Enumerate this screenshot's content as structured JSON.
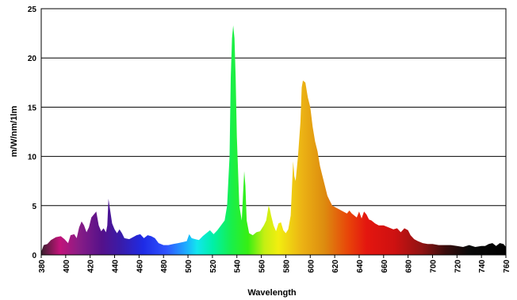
{
  "chart_data": {
    "type": "area",
    "title": "",
    "xlabel": "Wavelength",
    "ylabel": "m/W/nm/1lm",
    "xlim": [
      380,
      760
    ],
    "ylim": [
      0,
      25
    ],
    "grid": true,
    "legend": "none",
    "x_ticks": [
      "380",
      "400",
      "420",
      "440",
      "460",
      "480",
      "500",
      "520",
      "540",
      "560",
      "580",
      "600",
      "620",
      "640",
      "660",
      "680",
      "700",
      "720",
      "740",
      "760"
    ],
    "y_ticks": [
      "0",
      "5",
      "10",
      "15",
      "20",
      "25"
    ],
    "fill": "visible-spectrum gradient",
    "series": [
      {
        "points": [
          [
            380,
            0.3
          ],
          [
            382,
            1.0
          ],
          [
            385,
            1.1
          ],
          [
            388,
            1.5
          ],
          [
            392,
            1.8
          ],
          [
            396,
            1.9
          ],
          [
            399,
            1.6
          ],
          [
            402,
            1.2
          ],
          [
            404,
            2.0
          ],
          [
            407,
            2.1
          ],
          [
            409,
            1.7
          ],
          [
            411,
            2.8
          ],
          [
            413,
            3.4
          ],
          [
            415,
            3.0
          ],
          [
            417,
            2.3
          ],
          [
            419,
            2.8
          ],
          [
            421,
            3.8
          ],
          [
            423,
            4.1
          ],
          [
            425,
            4.4
          ],
          [
            427,
            3.0
          ],
          [
            429,
            2.4
          ],
          [
            431,
            2.7
          ],
          [
            433,
            2.3
          ],
          [
            434,
            3.0
          ],
          [
            435,
            5.7
          ],
          [
            436,
            4.8
          ],
          [
            438,
            3.2
          ],
          [
            440,
            2.6
          ],
          [
            442,
            2.2
          ],
          [
            444,
            2.6
          ],
          [
            446,
            2.2
          ],
          [
            448,
            1.7
          ],
          [
            452,
            1.6
          ],
          [
            455,
            1.8
          ],
          [
            458,
            2.0
          ],
          [
            461,
            2.1
          ],
          [
            464,
            1.7
          ],
          [
            467,
            2.0
          ],
          [
            470,
            1.9
          ],
          [
            473,
            1.7
          ],
          [
            476,
            1.2
          ],
          [
            480,
            1.0
          ],
          [
            484,
            1.0
          ],
          [
            488,
            1.1
          ],
          [
            492,
            1.2
          ],
          [
            496,
            1.3
          ],
          [
            499,
            1.4
          ],
          [
            501,
            2.1
          ],
          [
            503,
            1.7
          ],
          [
            506,
            1.6
          ],
          [
            509,
            1.5
          ],
          [
            512,
            1.9
          ],
          [
            515,
            2.2
          ],
          [
            518,
            2.5
          ],
          [
            521,
            2.1
          ],
          [
            524,
            2.5
          ],
          [
            527,
            3.0
          ],
          [
            530,
            3.5
          ],
          [
            532,
            5.0
          ],
          [
            534,
            10.0
          ],
          [
            535,
            18.0
          ],
          [
            536,
            22.0
          ],
          [
            537,
            23.3
          ],
          [
            538,
            22.0
          ],
          [
            539,
            18.0
          ],
          [
            540,
            12.0
          ],
          [
            542,
            5.0
          ],
          [
            544,
            3.5
          ],
          [
            545,
            6.0
          ],
          [
            546,
            8.5
          ],
          [
            547,
            7.0
          ],
          [
            548,
            3.5
          ],
          [
            550,
            2.2
          ],
          [
            553,
            2.0
          ],
          [
            556,
            2.3
          ],
          [
            559,
            2.4
          ],
          [
            562,
            3.0
          ],
          [
            564,
            3.5
          ],
          [
            566,
            5.0
          ],
          [
            567,
            4.6
          ],
          [
            568,
            4.0
          ],
          [
            570,
            3.0
          ],
          [
            572,
            2.4
          ],
          [
            574,
            3.2
          ],
          [
            576,
            3.3
          ],
          [
            578,
            2.5
          ],
          [
            580,
            2.2
          ],
          [
            582,
            2.6
          ],
          [
            584,
            4.0
          ],
          [
            586,
            9.5
          ],
          [
            587,
            8.0
          ],
          [
            588,
            7.5
          ],
          [
            590,
            10.0
          ],
          [
            592,
            13.5
          ],
          [
            593,
            17.0
          ],
          [
            594,
            17.7
          ],
          [
            596,
            17.5
          ],
          [
            598,
            16.0
          ],
          [
            600,
            15.0
          ],
          [
            602,
            13.0
          ],
          [
            604,
            11.5
          ],
          [
            606,
            10.5
          ],
          [
            608,
            9.0
          ],
          [
            610,
            8.0
          ],
          [
            612,
            7.0
          ],
          [
            614,
            6.0
          ],
          [
            616,
            5.5
          ],
          [
            618,
            5.0
          ],
          [
            621,
            4.8
          ],
          [
            624,
            4.6
          ],
          [
            627,
            4.4
          ],
          [
            630,
            4.2
          ],
          [
            632,
            4.5
          ],
          [
            634,
            4.2
          ],
          [
            636,
            4.0
          ],
          [
            638,
            3.8
          ],
          [
            640,
            4.4
          ],
          [
            642,
            3.7
          ],
          [
            644,
            4.4
          ],
          [
            646,
            4.1
          ],
          [
            648,
            3.6
          ],
          [
            650,
            3.5
          ],
          [
            653,
            3.2
          ],
          [
            656,
            3.0
          ],
          [
            660,
            3.0
          ],
          [
            664,
            2.8
          ],
          [
            668,
            2.6
          ],
          [
            671,
            2.7
          ],
          [
            674,
            2.3
          ],
          [
            677,
            2.7
          ],
          [
            680,
            2.5
          ],
          [
            682,
            2.0
          ],
          [
            685,
            1.6
          ],
          [
            688,
            1.4
          ],
          [
            692,
            1.2
          ],
          [
            696,
            1.1
          ],
          [
            700,
            1.1
          ],
          [
            705,
            1.0
          ],
          [
            710,
            1.0
          ],
          [
            715,
            1.0
          ],
          [
            720,
            0.9
          ],
          [
            725,
            0.8
          ],
          [
            730,
            1.0
          ],
          [
            735,
            0.8
          ],
          [
            740,
            0.9
          ],
          [
            743,
            0.9
          ],
          [
            746,
            1.1
          ],
          [
            749,
            1.2
          ],
          [
            752,
            0.9
          ],
          [
            755,
            1.2
          ],
          [
            758,
            1.1
          ],
          [
            760,
            0.8
          ]
        ]
      }
    ]
  }
}
